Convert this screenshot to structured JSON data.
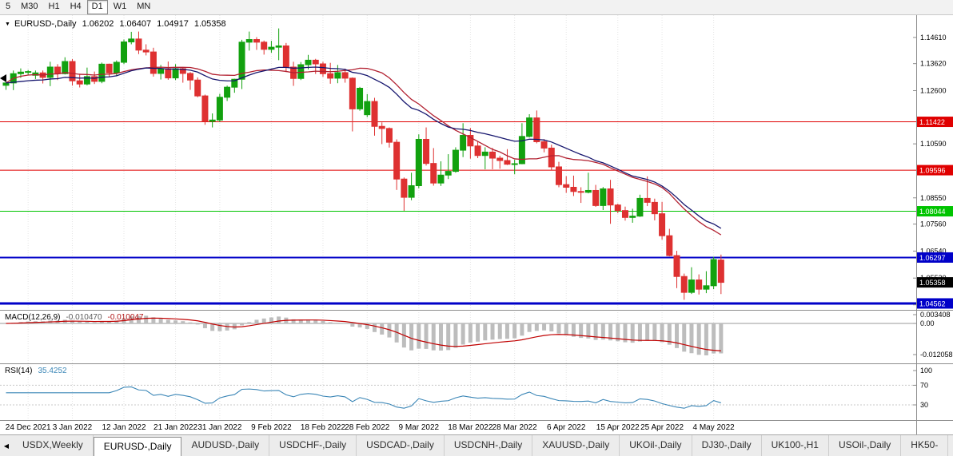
{
  "icons": {
    "collapse": "▼",
    "tab_scroll_left": "◀"
  },
  "toolbar": {
    "timeframes": [
      {
        "label": "5",
        "active": false
      },
      {
        "label": "M30",
        "active": false
      },
      {
        "label": "H1",
        "active": false
      },
      {
        "label": "H4",
        "active": false
      },
      {
        "label": "D1",
        "active": true
      },
      {
        "label": "W1",
        "active": false
      },
      {
        "label": "MN",
        "active": false
      }
    ]
  },
  "header": {
    "symbol": "EURUSD-,Daily",
    "open": "1.06202",
    "high": "1.06407",
    "low": "1.04917",
    "close": "1.05358"
  },
  "chart_data": {
    "type": "candlestick",
    "symbol": "EURUSD-,Daily",
    "colors": {
      "bull": "#12a10f",
      "bear": "#de3131",
      "grid": "#e4e4e4",
      "separator": "#8e8e8e",
      "axis_text": "#000000"
    },
    "candles": [
      [
        1.128,
        1.1312,
        1.1263,
        1.1289
      ],
      [
        1.1289,
        1.1336,
        1.1262,
        1.1324
      ],
      [
        1.1324,
        1.1344,
        1.1308,
        1.133
      ],
      [
        1.133,
        1.1338,
        1.1319,
        1.1332
      ],
      [
        1.1318,
        1.1336,
        1.1304,
        1.1327
      ],
      [
        1.1327,
        1.1336,
        1.1287,
        1.131
      ],
      [
        1.131,
        1.1369,
        1.1277,
        1.1349
      ],
      [
        1.1349,
        1.136,
        1.13,
        1.1324
      ],
      [
        1.1324,
        1.1386,
        1.1321,
        1.137
      ],
      [
        1.137,
        1.1379,
        1.1279,
        1.1297
      ],
      [
        1.1297,
        1.1324,
        1.1272,
        1.1285
      ],
      [
        1.1285,
        1.1347,
        1.128,
        1.1313
      ],
      [
        1.1313,
        1.1332,
        1.1285,
        1.1295
      ],
      [
        1.1295,
        1.1366,
        1.1288,
        1.136
      ],
      [
        1.136,
        1.1362,
        1.1313,
        1.1327
      ],
      [
        1.1327,
        1.1374,
        1.1314,
        1.1367
      ],
      [
        1.1367,
        1.1453,
        1.136,
        1.1444
      ],
      [
        1.1444,
        1.1482,
        1.1435,
        1.1455
      ],
      [
        1.1455,
        1.1483,
        1.1398,
        1.1413
      ],
      [
        1.1413,
        1.1435,
        1.1393,
        1.1406
      ],
      [
        1.1406,
        1.1422,
        1.1313,
        1.1325
      ],
      [
        1.1325,
        1.1357,
        1.1302,
        1.1343
      ],
      [
        1.1343,
        1.137,
        1.1301,
        1.1308
      ],
      [
        1.1308,
        1.136,
        1.13,
        1.1343
      ],
      [
        1.1343,
        1.1349,
        1.129,
        1.1325
      ],
      [
        1.1325,
        1.133,
        1.1263,
        1.13
      ],
      [
        1.13,
        1.131,
        1.1235,
        1.124
      ],
      [
        1.124,
        1.1245,
        1.1131,
        1.1144
      ],
      [
        1.1144,
        1.1174,
        1.1121,
        1.1149
      ],
      [
        1.1149,
        1.1248,
        1.1141,
        1.1235
      ],
      [
        1.1235,
        1.1279,
        1.1221,
        1.1273
      ],
      [
        1.1273,
        1.1305,
        1.1252,
        1.1303
      ],
      [
        1.1303,
        1.1452,
        1.1266,
        1.1443
      ],
      [
        1.1443,
        1.1483,
        1.1411,
        1.1453
      ],
      [
        1.1453,
        1.1462,
        1.1414,
        1.1443
      ],
      [
        1.1443,
        1.1449,
        1.1396,
        1.1416
      ],
      [
        1.1416,
        1.1448,
        1.1403,
        1.1424
      ],
      [
        1.1424,
        1.1495,
        1.1375,
        1.1429
      ],
      [
        1.1429,
        1.144,
        1.133,
        1.1349
      ],
      [
        1.1349,
        1.1369,
        1.1278,
        1.1306
      ],
      [
        1.1306,
        1.1368,
        1.13,
        1.1358
      ],
      [
        1.1358,
        1.1395,
        1.134,
        1.1375
      ],
      [
        1.1375,
        1.138,
        1.1323,
        1.1361
      ],
      [
        1.1361,
        1.1369,
        1.1312,
        1.1324
      ],
      [
        1.1324,
        1.1365,
        1.1286,
        1.1307
      ],
      [
        1.1307,
        1.1357,
        1.1288,
        1.1328
      ],
      [
        1.1328,
        1.1343,
        1.129,
        1.1307
      ],
      [
        1.1307,
        1.131,
        1.1106,
        1.1191
      ],
      [
        1.1191,
        1.1274,
        1.1184,
        1.1269
      ],
      [
        1.1169,
        1.1247,
        1.116,
        1.1219
      ],
      [
        1.1219,
        1.1233,
        1.109,
        1.1125
      ],
      [
        1.1125,
        1.114,
        1.1058,
        1.1117
      ],
      [
        1.1117,
        1.1121,
        1.1045,
        1.1065
      ],
      [
        1.1065,
        1.1076,
        1.0885,
        1.0926
      ],
      [
        1.0926,
        1.0932,
        1.0806,
        1.0857
      ],
      [
        1.0857,
        1.095,
        1.0846,
        1.0901
      ],
      [
        1.0901,
        1.1095,
        1.0891,
        1.1076
      ],
      [
        1.1076,
        1.1121,
        1.0977,
        1.0985
      ],
      [
        1.0985,
        1.1043,
        1.0901,
        1.0911
      ],
      [
        1.0911,
        1.0993,
        1.09,
        1.0941
      ],
      [
        1.0941,
        1.102,
        1.0926,
        1.0955
      ],
      [
        1.0955,
        1.1046,
        1.095,
        1.1035
      ],
      [
        1.1035,
        1.1137,
        1.1009,
        1.1091
      ],
      [
        1.1091,
        1.1119,
        1.1003,
        1.1051
      ],
      [
        1.1051,
        1.1069,
        1.1005,
        1.1015
      ],
      [
        1.1015,
        1.1046,
        1.0963,
        1.1028
      ],
      [
        1.1028,
        1.1044,
        1.0963,
        1.1005
      ],
      [
        1.1005,
        1.1014,
        1.0965,
        1.0996
      ],
      [
        1.0996,
        1.1039,
        1.0979,
        1.0982
      ],
      [
        1.0982,
        1.0999,
        1.0944,
        1.0984
      ],
      [
        1.0984,
        1.1137,
        1.0982,
        1.1087
      ],
      [
        1.1087,
        1.1171,
        1.1083,
        1.1157
      ],
      [
        1.1157,
        1.1185,
        1.1061,
        1.1067
      ],
      [
        1.1067,
        1.1077,
        1.1027,
        1.1043
      ],
      [
        1.1043,
        1.1056,
        1.096,
        1.0972
      ],
      [
        1.0972,
        1.0991,
        1.0895,
        1.0905
      ],
      [
        1.0905,
        1.0937,
        1.0874,
        1.0895
      ],
      [
        1.0895,
        1.0939,
        1.0862,
        1.0879
      ],
      [
        1.0879,
        1.0895,
        1.0836,
        1.0876
      ],
      [
        1.0876,
        1.095,
        1.0872,
        1.0883
      ],
      [
        1.0883,
        1.0904,
        1.0821,
        1.0826
      ],
      [
        1.0826,
        1.0896,
        1.0809,
        1.0889
      ],
      [
        1.0889,
        1.0923,
        1.0757,
        1.0828
      ],
      [
        1.0828,
        1.0833,
        1.0797,
        1.0807
      ],
      [
        1.0807,
        1.0822,
        1.0769,
        1.0781
      ],
      [
        1.0781,
        1.0814,
        1.0761,
        1.0786
      ],
      [
        1.0786,
        1.0867,
        1.0783,
        1.0853
      ],
      [
        1.0853,
        1.0936,
        1.0824,
        1.0838
      ],
      [
        1.0838,
        1.0852,
        1.077,
        1.0795
      ],
      [
        1.0795,
        1.084,
        1.0697,
        1.0712
      ],
      [
        1.0712,
        1.0738,
        1.0634,
        1.0637
      ],
      [
        1.0637,
        1.0655,
        1.0514,
        1.0558
      ],
      [
        1.0558,
        1.0569,
        1.047,
        1.0498
      ],
      [
        1.0498,
        1.0593,
        1.0492,
        1.0545
      ],
      [
        1.0545,
        1.0566,
        1.049,
        1.051
      ],
      [
        1.051,
        1.0578,
        1.0495,
        1.0523
      ],
      [
        1.0523,
        1.0632,
        1.051,
        1.0622
      ],
      [
        1.06202,
        1.06407,
        1.04917,
        1.05358
      ]
    ],
    "x_labels": [
      {
        "text": "24 Dec 2021",
        "i": 3
      },
      {
        "text": "3 Jan 2022",
        "i": 9
      },
      {
        "text": "12 Jan 2022",
        "i": 16
      },
      {
        "text": "21 Jan 2022",
        "i": 23
      },
      {
        "text": "31 Jan 2022",
        "i": 29
      },
      {
        "text": "9 Feb 2022",
        "i": 36
      },
      {
        "text": "18 Feb 2022",
        "i": 43
      },
      {
        "text": "28 Feb 2022",
        "i": 49
      },
      {
        "text": "9 Mar 2022",
        "i": 56
      },
      {
        "text": "18 Mar 2022",
        "i": 63
      },
      {
        "text": "28 Mar 2022",
        "i": 69
      },
      {
        "text": "6 Apr 2022",
        "i": 76
      },
      {
        "text": "15 Apr 2022",
        "i": 83
      },
      {
        "text": "25 Apr 2022",
        "i": 89
      },
      {
        "text": "4 May 2022",
        "i": 96
      }
    ],
    "y_axis": {
      "ticks": [
        {
          "text": "1.14610",
          "v": 1.1461
        },
        {
          "text": "1.13620",
          "v": 1.1362
        },
        {
          "text": "1.12600",
          "v": 1.126
        },
        {
          "text": "1.10590",
          "v": 1.1059
        },
        {
          "text": "1.08550",
          "v": 1.0855
        },
        {
          "text": "1.07560",
          "v": 1.0756
        },
        {
          "text": "1.06540",
          "v": 1.0654
        },
        {
          "text": "1.05520",
          "v": 1.0552
        },
        {
          "text": "1.04510",
          "v": 1.0451
        }
      ]
    },
    "current_price": {
      "text": "1.05358",
      "v": 1.05358,
      "badge_color": "#000000"
    },
    "hlines": [
      {
        "text": "1.11422",
        "v": 1.11422,
        "color": "#e00000",
        "w": 1
      },
      {
        "text": "1.09596",
        "v": 1.09596,
        "color": "#e00000",
        "w": 1
      },
      {
        "text": "1.08044",
        "v": 1.08044,
        "color": "#00c400",
        "w": 1
      },
      {
        "text": "1.06297",
        "v": 1.06297,
        "color": "#0000c8",
        "w": 2
      },
      {
        "text": "1.04562",
        "v": 1.04562,
        "color": "#0000c8",
        "w": 3
      }
    ],
    "overlays": [
      {
        "name": "ma-fast",
        "type": "sma",
        "period": 20,
        "color": "#b22030"
      },
      {
        "name": "ma-slow",
        "type": "ema",
        "period": 26,
        "color": "#16166e"
      }
    ],
    "panes": {
      "price": {
        "v_top": 1.1545,
        "v_bottom": 1.0435
      },
      "macd": {
        "label": "MACD(12,26,9)",
        "values": {
          "main": "-0.010470",
          "signal": "-0.010047"
        },
        "params": {
          "fast": 12,
          "slow": 26,
          "signal": 9
        },
        "axis": [
          {
            "text": "0.003408",
            "v": 0.003408
          },
          {
            "text": "0.00",
            "v": 0
          },
          {
            "text": "-0.012058",
            "v": -0.012058
          }
        ],
        "v_top": 0.00464,
        "v_bottom": -0.01484,
        "colors": {
          "hist": "#bdbdbd",
          "signal": "#c00000",
          "zero": "#9a9a9a"
        }
      },
      "rsi": {
        "label": "RSI(14)",
        "value": "35.4252",
        "period": 14,
        "axis": [
          {
            "text": "100",
            "v": 100
          },
          {
            "text": "70",
            "v": 70
          },
          {
            "text": "30",
            "v": 30
          }
        ],
        "levels": [
          70,
          30
        ],
        "v_top": 111.4,
        "v_bottom": 0.7,
        "color": "#3c87b7",
        "level_color": "#c8c8c8"
      }
    }
  },
  "tabs": {
    "items": [
      {
        "label": "USDX,Weekly",
        "active": false
      },
      {
        "label": "EURUSD-,Daily",
        "active": true
      },
      {
        "label": "AUDUSD-,Daily",
        "active": false
      },
      {
        "label": "USDCHF-,Daily",
        "active": false
      },
      {
        "label": "USDCAD-,Daily",
        "active": false
      },
      {
        "label": "USDCNH-,Daily",
        "active": false
      },
      {
        "label": "XAUUSD-,Daily",
        "active": false
      },
      {
        "label": "UKOil-,Daily",
        "active": false
      },
      {
        "label": "DJ30-,Daily",
        "active": false
      },
      {
        "label": "UK100-,H1",
        "active": false
      },
      {
        "label": "USOil-,Daily",
        "active": false
      },
      {
        "label": "HK50-",
        "active": false
      }
    ]
  }
}
